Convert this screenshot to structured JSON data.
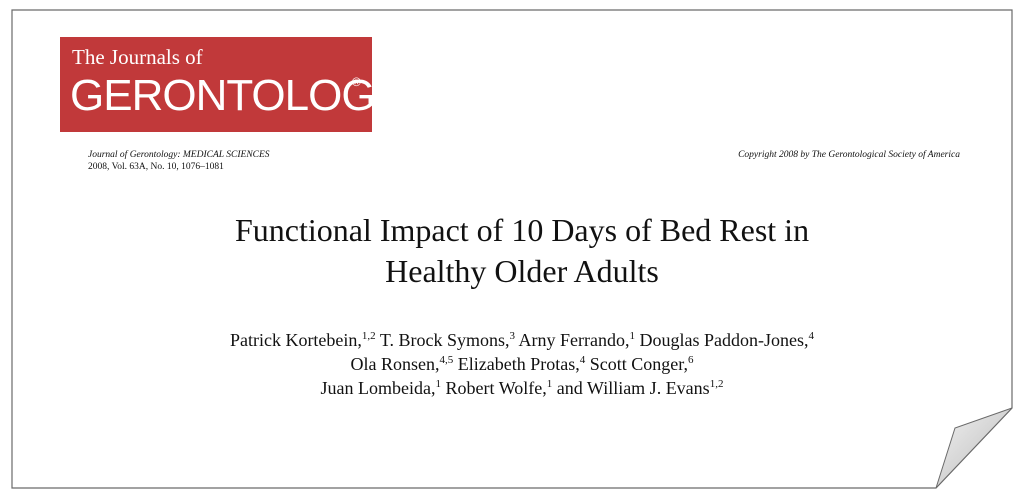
{
  "logo": {
    "line1": "The Journals of",
    "line2": "GERONTOLOGY",
    "mark": "®"
  },
  "journal": {
    "name": "Journal of Gerontology: MEDICAL SCIENCES",
    "citation": "2008, Vol. 63A, No. 10, 1076–1081",
    "copyright": "Copyright 2008 by The Gerontological Society of America"
  },
  "title": {
    "line1": "Functional Impact of 10 Days of Bed Rest in",
    "line2": "Healthy Older Adults"
  },
  "authors": [
    [
      {
        "name": "Patrick Kortebein,",
        "sup": "1,2"
      },
      {
        "name": "T. Brock Symons,",
        "sup": "3"
      },
      {
        "name": "Arny Ferrando,",
        "sup": "1"
      },
      {
        "name": "Douglas Paddon-Jones,",
        "sup": "4"
      }
    ],
    [
      {
        "name": "Ola Ronsen,",
        "sup": "4,5"
      },
      {
        "name": "Elizabeth Protas,",
        "sup": "4"
      },
      {
        "name": "Scott Conger,",
        "sup": "6"
      }
    ],
    [
      {
        "name": "Juan Lombeida,",
        "sup": "1"
      },
      {
        "name": "Robert Wolfe,",
        "sup": "1"
      },
      {
        "prefix": "and",
        "name": "William J. Evans",
        "sup": "1,2"
      }
    ]
  ]
}
